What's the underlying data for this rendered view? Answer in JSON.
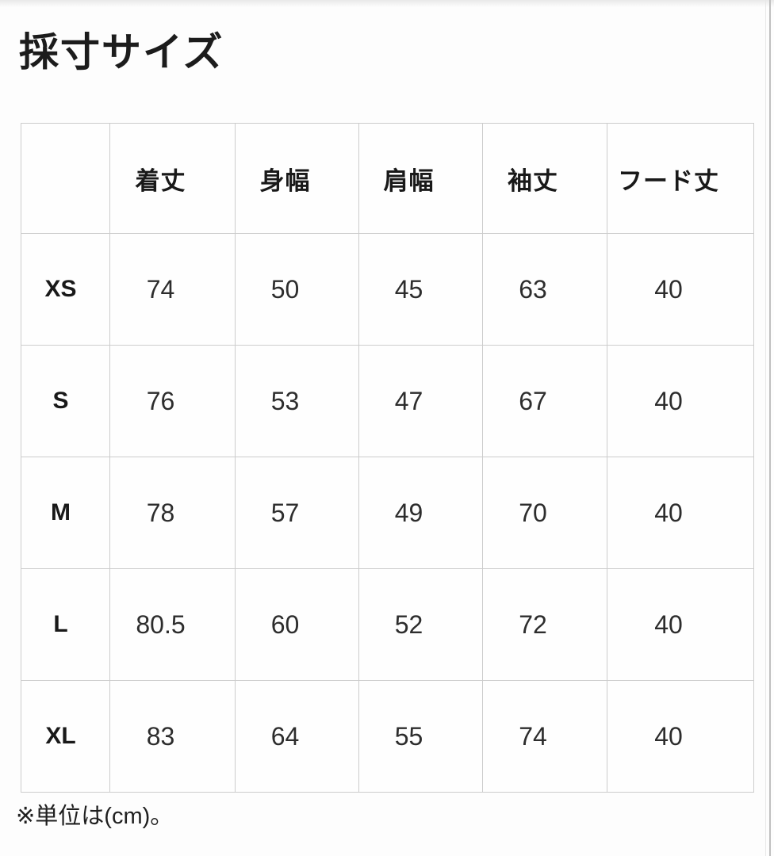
{
  "page": {
    "title": "採寸サイズ",
    "footnote": "※単位は(cm)。"
  },
  "size_table": {
    "columns": [
      "着丈",
      "身幅",
      "肩幅",
      "袖丈",
      "フード丈"
    ],
    "rows": [
      {
        "size": "XS",
        "values": [
          "74",
          "50",
          "45",
          "63",
          "40"
        ]
      },
      {
        "size": "S",
        "values": [
          "76",
          "53",
          "47",
          "67",
          "40"
        ]
      },
      {
        "size": "M",
        "values": [
          "78",
          "57",
          "49",
          "70",
          "40"
        ]
      },
      {
        "size": "L",
        "values": [
          "80.5",
          "60",
          "52",
          "72",
          "40"
        ]
      },
      {
        "size": "XL",
        "values": [
          "83",
          "64",
          "55",
          "74",
          "40"
        ]
      }
    ],
    "unit": "cm"
  },
  "colors": {
    "background": "#fdfdfd",
    "table_border": "#cccccc",
    "heading_text": "#1c1c1c",
    "value_text": "#2d2d2d",
    "top_band": "#e9e9e9",
    "right_divider": "#c0c0c0"
  }
}
